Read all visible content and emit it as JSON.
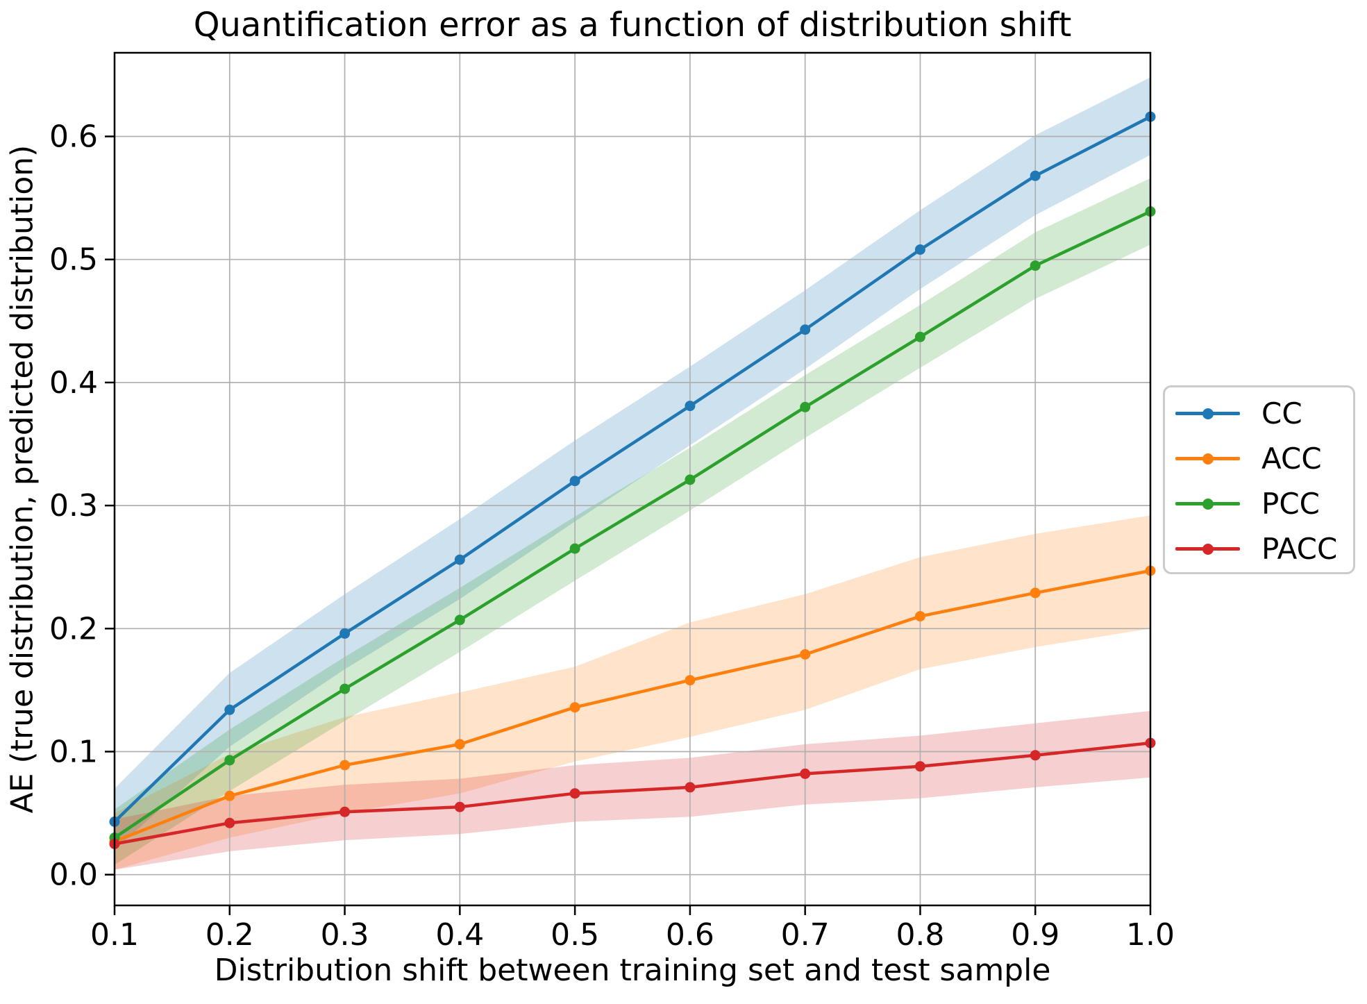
{
  "chart_data": {
    "type": "line",
    "title": "Quantification error as a function of distribution shift",
    "xlabel": "Distribution shift between training set and test sample",
    "ylabel": "AE (true distribution, predicted distribution)",
    "x": [
      0.1,
      0.2,
      0.3,
      0.4,
      0.5,
      0.6,
      0.7,
      0.8,
      0.9,
      1.0
    ],
    "x_tick_labels": [
      "0.1",
      "0.2",
      "0.3",
      "0.4",
      "0.5",
      "0.6",
      "0.7",
      "0.8",
      "0.9",
      "1.0"
    ],
    "y_tick_values": [
      0.0,
      0.1,
      0.2,
      0.3,
      0.4,
      0.5,
      0.6
    ],
    "y_tick_labels": [
      "0.0",
      "0.1",
      "0.2",
      "0.3",
      "0.4",
      "0.5",
      "0.6"
    ],
    "xlim": [
      0.1,
      1.0
    ],
    "ylim": [
      -0.025,
      0.668
    ],
    "grid": true,
    "grid_color": "#b0b0b0",
    "axis_color": "#000000",
    "legend_position": "center-right-outside",
    "band_opacity": 0.22,
    "series": [
      {
        "name": "CC",
        "color": "#1f77b4",
        "values": [
          0.043,
          0.134,
          0.196,
          0.256,
          0.32,
          0.381,
          0.443,
          0.508,
          0.568,
          0.616
        ],
        "band_lo": [
          0.02,
          0.104,
          0.167,
          0.224,
          0.287,
          0.349,
          0.411,
          0.476,
          0.536,
          0.585
        ],
        "band_hi": [
          0.07,
          0.164,
          0.228,
          0.289,
          0.353,
          0.413,
          0.475,
          0.54,
          0.601,
          0.648
        ]
      },
      {
        "name": "ACC",
        "color": "#ff7f0e",
        "values": [
          0.027,
          0.064,
          0.089,
          0.106,
          0.136,
          0.158,
          0.179,
          0.21,
          0.229,
          0.247
        ],
        "band_lo": [
          0.004,
          0.03,
          0.05,
          0.066,
          0.092,
          0.112,
          0.134,
          0.167,
          0.185,
          0.2
        ],
        "band_hi": [
          0.05,
          0.098,
          0.128,
          0.148,
          0.169,
          0.205,
          0.228,
          0.258,
          0.277,
          0.292
        ]
      },
      {
        "name": "PCC",
        "color": "#2ca02c",
        "values": [
          0.03,
          0.093,
          0.151,
          0.207,
          0.265,
          0.321,
          0.38,
          0.437,
          0.495,
          0.539
        ],
        "band_lo": [
          0.008,
          0.068,
          0.125,
          0.181,
          0.239,
          0.296,
          0.355,
          0.412,
          0.468,
          0.512
        ],
        "band_hi": [
          0.053,
          0.118,
          0.177,
          0.233,
          0.291,
          0.347,
          0.406,
          0.463,
          0.522,
          0.566
        ]
      },
      {
        "name": "PACC",
        "color": "#d62728",
        "values": [
          0.025,
          0.042,
          0.051,
          0.055,
          0.066,
          0.071,
          0.082,
          0.088,
          0.097,
          0.107
        ],
        "band_lo": [
          0.004,
          0.019,
          0.028,
          0.033,
          0.043,
          0.047,
          0.057,
          0.062,
          0.071,
          0.079
        ],
        "band_hi": [
          0.045,
          0.064,
          0.073,
          0.078,
          0.089,
          0.095,
          0.106,
          0.113,
          0.123,
          0.133
        ]
      }
    ]
  }
}
